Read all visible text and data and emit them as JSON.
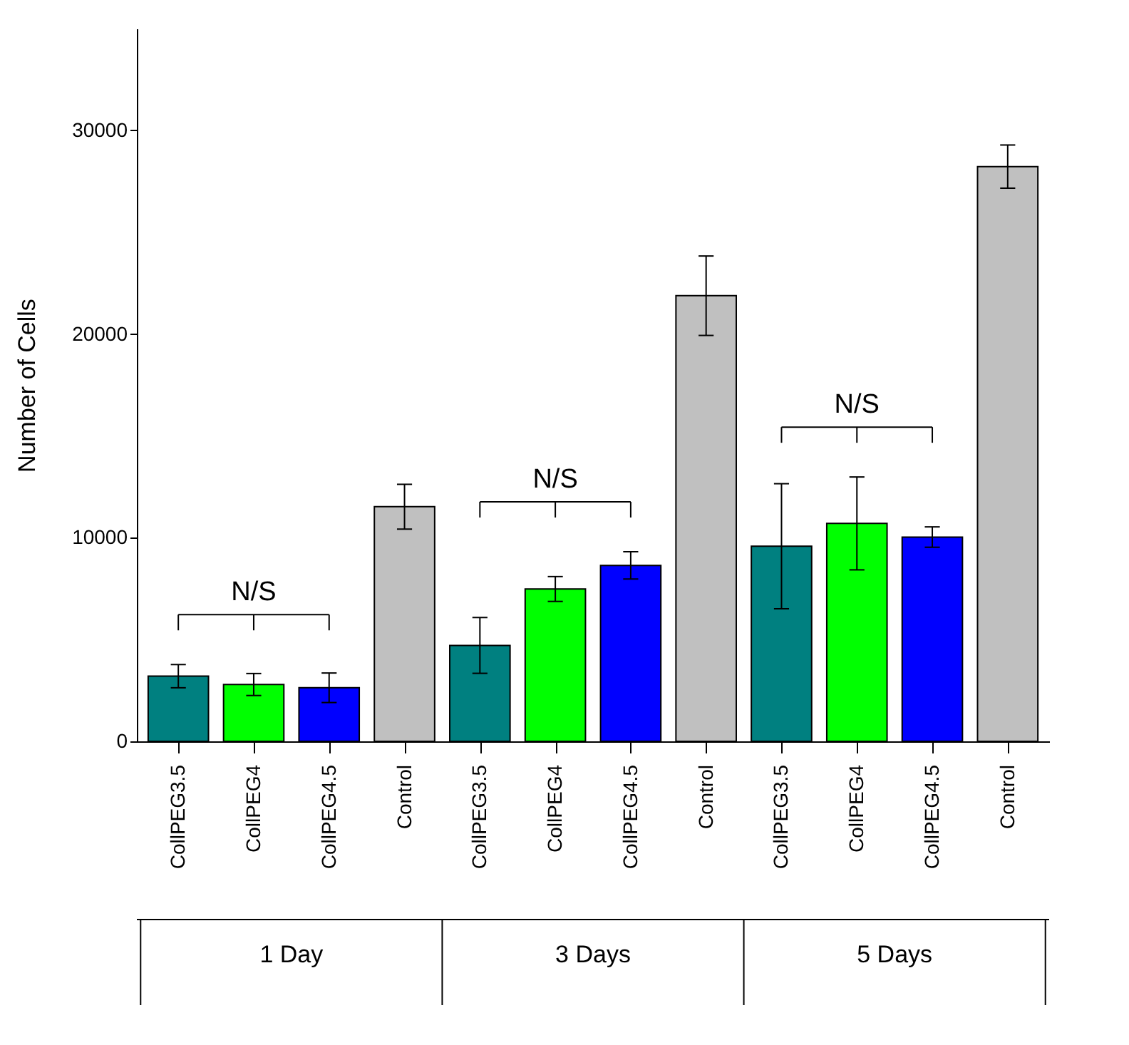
{
  "chart_data": {
    "type": "bar",
    "ylabel": "Number of Cells",
    "categories": [
      "CollPEG3.5",
      "CollPEG4",
      "CollPEG4.5",
      "Control",
      "CollPEG3.5",
      "CollPEG4",
      "CollPEG4.5",
      "Control",
      "CollPEG3.5",
      "CollPEG4",
      "CollPEG4.5",
      "Control"
    ],
    "values": [
      3200,
      2790,
      2630,
      11520,
      4710,
      7480,
      8640,
      21880,
      9580,
      10700,
      10030,
      28220
    ],
    "errors": [
      570,
      540,
      725,
      1100,
      1370,
      610,
      670,
      1950,
      3070,
      2280,
      500,
      1060
    ],
    "colors": [
      "#008080",
      "#00ff00",
      "#0000ff",
      "#c0c0c0",
      "#008080",
      "#00ff00",
      "#0000ff",
      "#c0c0c0",
      "#008080",
      "#00ff00",
      "#0000ff",
      "#c0c0c0"
    ],
    "ylim": [
      0,
      35000
    ],
    "yticks": [
      0,
      10000,
      20000,
      30000
    ],
    "annotations": [
      "1 Day",
      "3 Days",
      "5 Days",
      "N/S",
      "N/S",
      "N/S"
    ]
  }
}
